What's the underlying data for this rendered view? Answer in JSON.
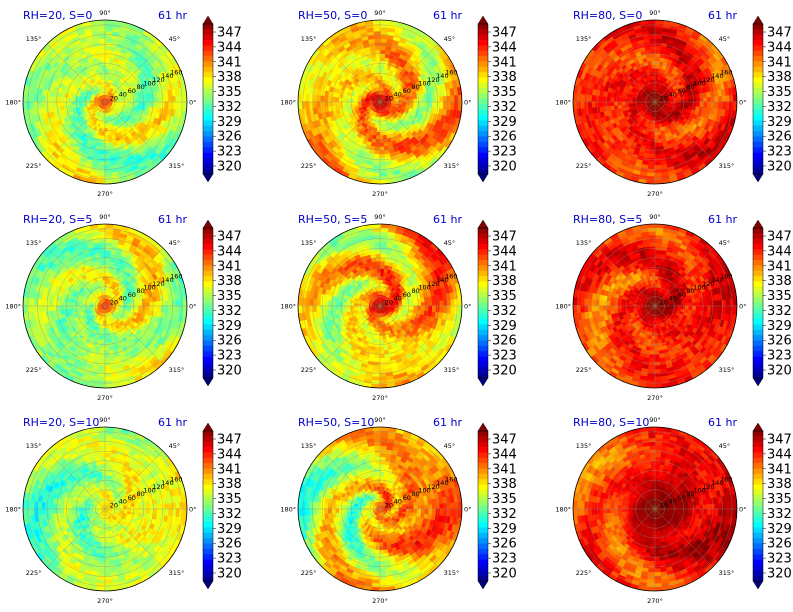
{
  "chart_data": {
    "type": "heatmap",
    "projection": "polar",
    "layout": {
      "rows": 3,
      "cols": 3
    },
    "grid": true,
    "theta_ticks": [
      "90°",
      "45°",
      "0°",
      "315°",
      "270°",
      "225°",
      "180°",
      "135°"
    ],
    "theta_tick_angles": [
      90,
      45,
      0,
      315,
      270,
      225,
      180,
      135
    ],
    "r_ticks": [
      "20",
      "40",
      "60",
      "80",
      "100",
      "120",
      "140",
      "160"
    ],
    "r_tick_values": [
      20,
      40,
      60,
      80,
      100,
      120,
      140,
      160
    ],
    "rlim": [
      0,
      170
    ],
    "colorbar": {
      "colormap": "jet",
      "ticks": [
        "347",
        "344",
        "341",
        "338",
        "335",
        "332",
        "329",
        "326",
        "323",
        "320"
      ],
      "vmin": 320,
      "vmax": 348,
      "extend": "both"
    },
    "panels": [
      {
        "title": "RH=20, S=0",
        "time": "61 hr",
        "rh": 20,
        "s": 0
      },
      {
        "title": "RH=50, S=0",
        "time": "61 hr",
        "rh": 50,
        "s": 0
      },
      {
        "title": "RH=80, S=0",
        "time": "61 hr",
        "rh": 80,
        "s": 0
      },
      {
        "title": "RH=20, S=5",
        "time": "61 hr",
        "rh": 20,
        "s": 5
      },
      {
        "title": "RH=50, S=5",
        "time": "61 hr",
        "rh": 50,
        "s": 5
      },
      {
        "title": "RH=80, S=5",
        "time": "61 hr",
        "rh": 80,
        "s": 5
      },
      {
        "title": "RH=20, S=10",
        "time": "61 hr",
        "rh": 20,
        "s": 10
      },
      {
        "title": "RH=50, S=10",
        "time": "61 hr",
        "rh": 50,
        "s": 10
      },
      {
        "title": "RH=80, S=10",
        "time": "61 hr",
        "rh": 80,
        "s": 10
      }
    ]
  }
}
